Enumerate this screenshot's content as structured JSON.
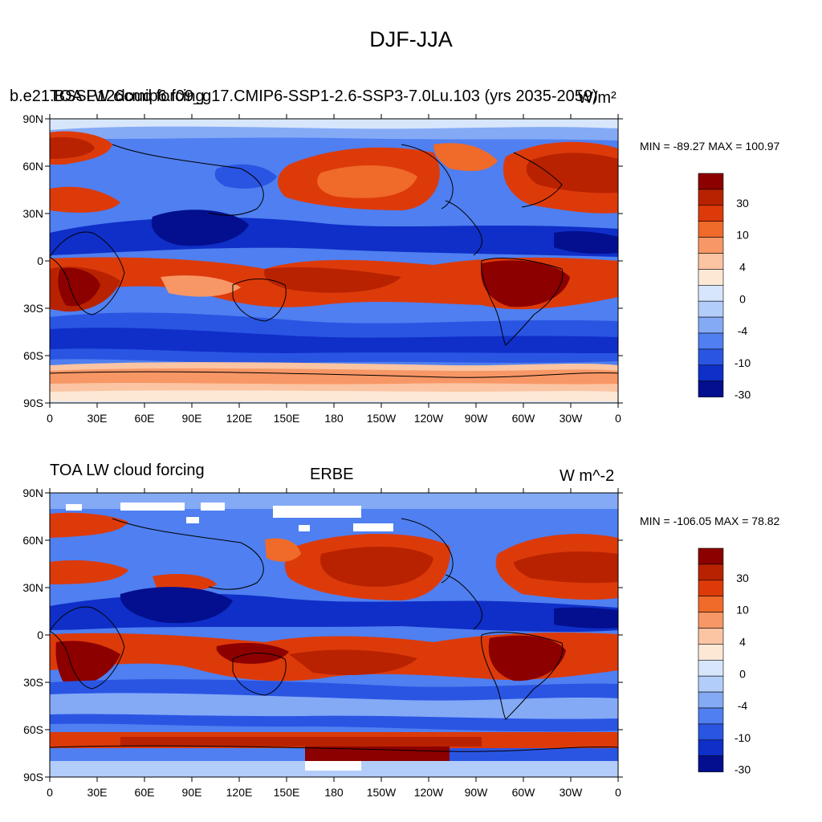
{
  "figure_title": "DJF-JJA",
  "panels": [
    {
      "left_title": "TOA LW cloud forcing",
      "overlap_title": "b.e21.BSSP126cmip6.f09_g17.CMIP6-SSP1-2.6-SSP3-7.0Lu.103 (yrs 2035-2059)",
      "center_title": "",
      "units": "W/m²",
      "min_max": "MIN = -89.27 MAX = 100.97"
    },
    {
      "left_title": "TOA LW cloud forcing",
      "center_title": "ERBE",
      "units": "W m^-2",
      "min_max": "MIN = -106.05 MAX =  78.82"
    }
  ],
  "lat_labels": [
    "90N",
    "60N",
    "30N",
    "0",
    "30S",
    "60S",
    "90S"
  ],
  "lon_labels": [
    "0",
    "30E",
    "60E",
    "90E",
    "120E",
    "150E",
    "180",
    "150W",
    "120W",
    "90W",
    "60W",
    "30W",
    "0"
  ],
  "colorbar": {
    "labels": [
      "30",
      "10",
      "4",
      "0",
      "-4",
      "-10",
      "-30"
    ],
    "colors": [
      "#8c0000",
      "#b82200",
      "#dd3a0a",
      "#f06a2a",
      "#f89766",
      "#fbc4a2",
      "#fde8d6",
      "#d8e6fc",
      "#b3cdfa",
      "#84aaf6",
      "#4f7ff0",
      "#2a55e3",
      "#0f2fc8",
      "#030f8e"
    ]
  }
}
